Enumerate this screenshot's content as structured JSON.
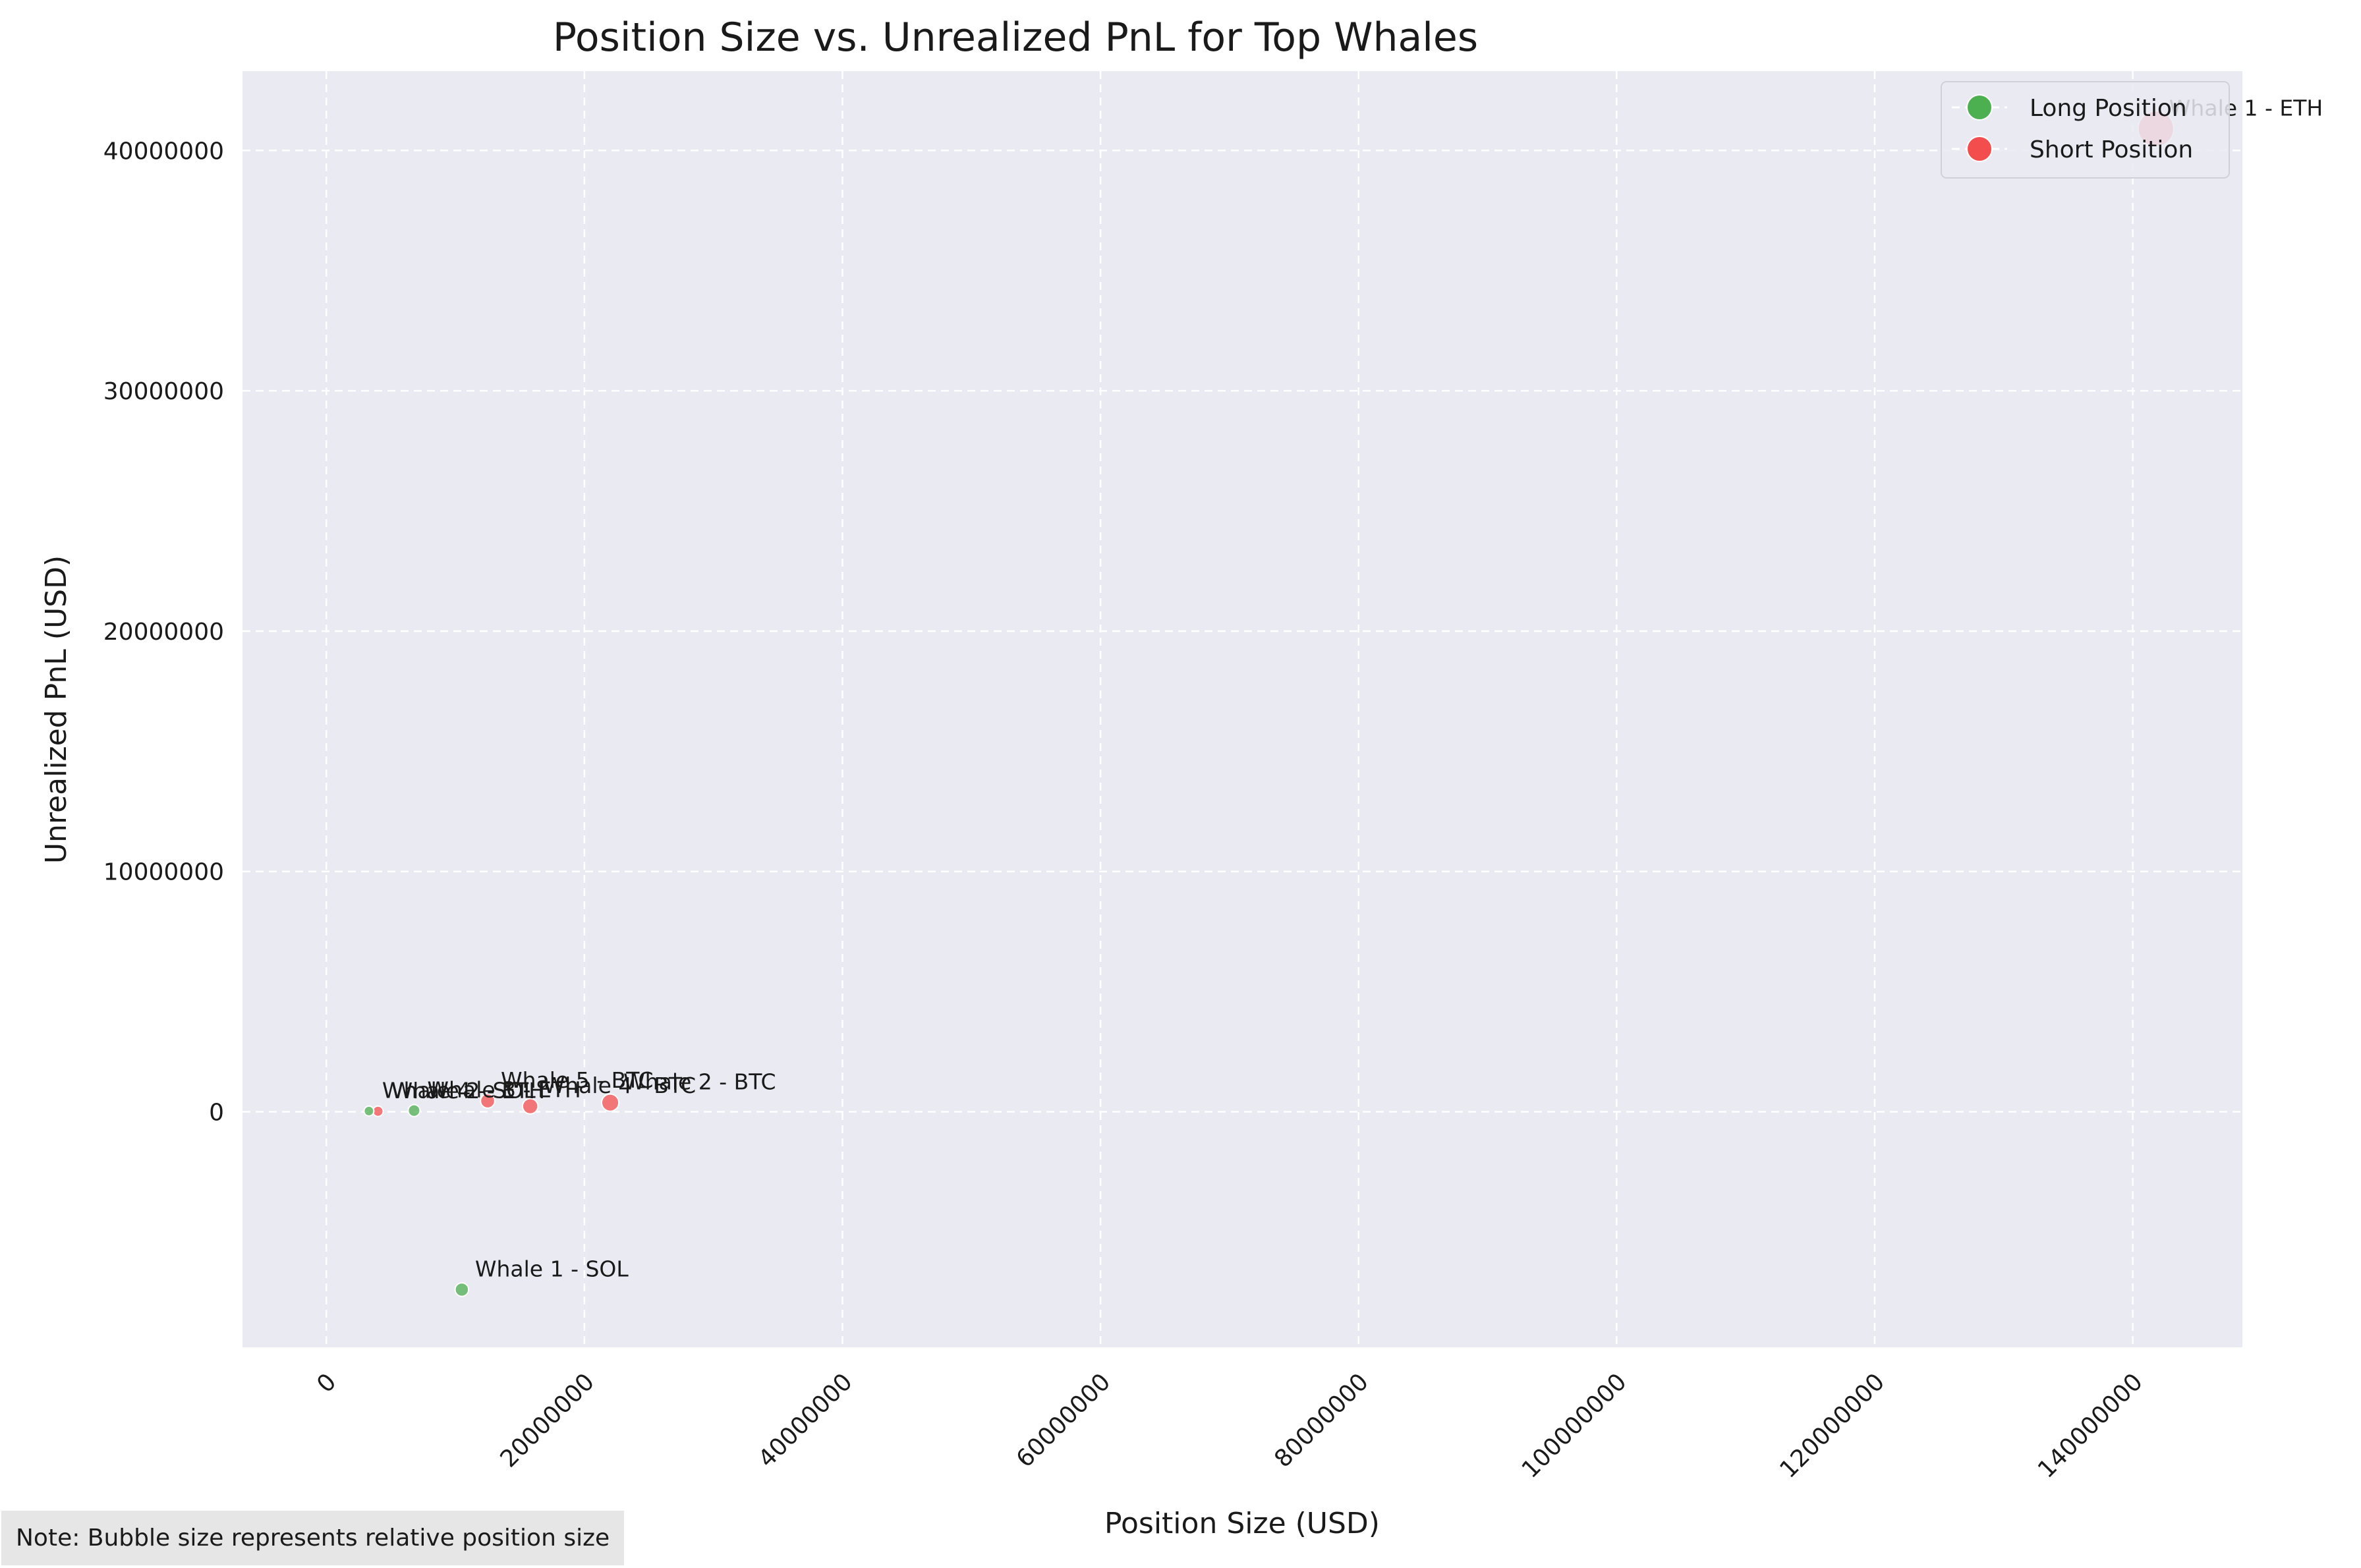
{
  "chart_data": {
    "type": "scatter",
    "title": "Position Size vs. Unrealized PnL for Top Whales",
    "xlabel": "Position Size (USD)",
    "ylabel": "Unrealized PnL (USD)",
    "xlim": [
      -6500000,
      148500000
    ],
    "ylim": [
      -9800000,
      43300000
    ],
    "xticks": [
      0,
      20000000,
      40000000,
      60000000,
      80000000,
      100000000,
      120000000,
      140000000
    ],
    "xtick_labels": [
      "0",
      "20000000",
      "40000000",
      "60000000",
      "80000000",
      "100000000",
      "120000000",
      "140000000"
    ],
    "yticks": [
      0,
      10000000,
      20000000,
      30000000,
      40000000
    ],
    "ytick_labels": [
      "0",
      "10000000",
      "20000000",
      "30000000",
      "40000000"
    ],
    "grid": true,
    "legend": {
      "placement": "top-right",
      "entries": [
        "Long Position",
        "Short Position"
      ]
    },
    "colors": {
      "long": "#4caf50",
      "short": "#f44d4d",
      "plot_bg": "#eaeaf2",
      "grid": "#ffffff"
    },
    "points": [
      {
        "label": "Whale 1 - ETH",
        "x": 141800000,
        "y": 40900000,
        "side": "short"
      },
      {
        "label": "Whale 2 - BTC",
        "x": 22000000,
        "y": 380000,
        "side": "short"
      },
      {
        "label": "Whale 4 - BTC",
        "x": 15800000,
        "y": 230000,
        "side": "short"
      },
      {
        "label": "Whale 5 - BTC",
        "x": 12500000,
        "y": 450000,
        "side": "short"
      },
      {
        "label": "Whale 3 - ETH",
        "x": 6800000,
        "y": 50000,
        "side": "long"
      },
      {
        "label": "Whale 2 - ETH",
        "x": 4000000,
        "y": 20000,
        "side": "short"
      },
      {
        "label": "Whale 4 - SOL",
        "x": 3300000,
        "y": 30000,
        "side": "long"
      },
      {
        "label": "Whale 1 - SOL",
        "x": 10500000,
        "y": -7400000,
        "side": "long"
      }
    ]
  },
  "note": "Note: Bubble size represents relative position size"
}
